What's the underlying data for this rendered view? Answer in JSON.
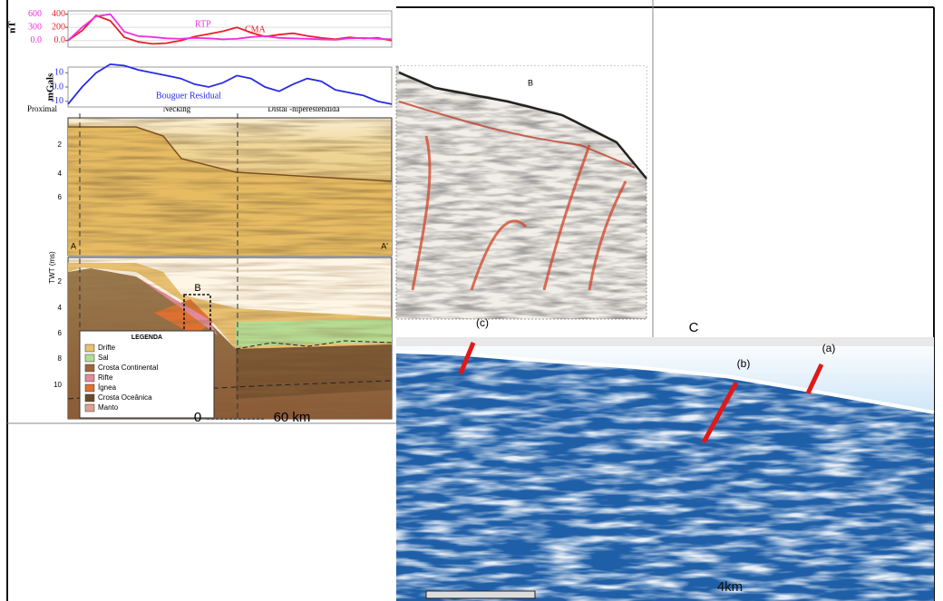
{
  "chart_data": [
    {
      "type": "line",
      "y_label": "nT",
      "series": [
        {
          "name": "CMA",
          "color": "#e8202a",
          "values": [
            0,
            150,
            380,
            300,
            50,
            -20,
            -50,
            -40,
            0,
            60,
            100,
            140,
            200,
            120,
            60,
            90,
            110,
            70,
            40,
            20,
            50,
            30,
            40,
            0
          ]
        },
        {
          "name": "RTP",
          "color": "#f030e0",
          "axis": "y2",
          "values": [
            0,
            300,
            550,
            600,
            200,
            100,
            80,
            50,
            40,
            60,
            50,
            30,
            40,
            80,
            100,
            60,
            50,
            40,
            30,
            20,
            50,
            60,
            40,
            30
          ]
        }
      ],
      "ylim": [
        -100,
        450
      ],
      "yticks": [
        {
          "value": 0,
          "label": "0.0"
        },
        200,
        400
      ],
      "y2lim": [
        -150,
        675
      ],
      "y2ticks": [
        {
          "value": 0,
          "label": "0.0"
        },
        300,
        600
      ],
      "grid": true
    },
    {
      "type": "line",
      "y_label": "mGals",
      "series": [
        {
          "name": "Bouguer Residual",
          "color": "#2a2ae8",
          "values": [
            -12,
            0,
            10,
            16,
            15,
            12,
            10,
            8,
            6,
            2,
            0,
            3,
            8,
            6,
            0,
            -3,
            2,
            6,
            4,
            -2,
            -4,
            -6,
            -10,
            -12
          ]
        }
      ],
      "ylim": [
        -14,
        14
      ],
      "yticks": [
        -10,
        {
          "value": 0,
          "label": "0.0"
        },
        10
      ],
      "grid": false
    }
  ],
  "profile_zones": [
    "Proximal",
    "Necking",
    "Distal -hiperestendida"
  ],
  "section_a": {
    "start_label": "A",
    "end_label": "A'",
    "y_label": "TWT (ms)",
    "upper_ticks": [
      "2",
      "4",
      "6"
    ],
    "lower_ticks": [
      "2",
      "4",
      "6",
      "8",
      "10"
    ],
    "inset_label": "B",
    "legend": {
      "title": "LEGENDA",
      "items": [
        "Drifte",
        "Sal",
        "Crosta Continental",
        "Rifte",
        "Ígnea",
        "Crosta Oceânica",
        "Manto"
      ]
    },
    "scale": {
      "start": "0",
      "end": "60 km"
    }
  },
  "panel_b": {
    "label": "B"
  },
  "panel_c": {
    "label": "C",
    "markers": [
      "(c)",
      "(b)",
      "(a)"
    ],
    "scale": "4km"
  }
}
